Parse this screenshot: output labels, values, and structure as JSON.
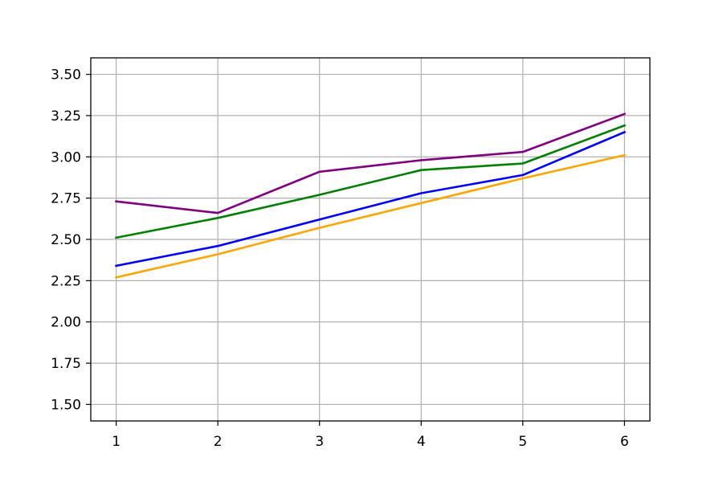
{
  "chart_data": {
    "type": "line",
    "title": "",
    "xlabel": "",
    "ylabel": "",
    "x": [
      1,
      2,
      3,
      4,
      5,
      6
    ],
    "xlim": [
      0.75,
      6.25
    ],
    "ylim": [
      1.4,
      3.6
    ],
    "xticks": [
      1,
      2,
      3,
      4,
      5,
      6
    ],
    "xtick_labels": [
      "1",
      "2",
      "3",
      "4",
      "5",
      "6"
    ],
    "yticks": [
      1.5,
      1.75,
      2.0,
      2.25,
      2.5,
      2.75,
      3.0,
      3.25,
      3.5
    ],
    "ytick_labels": [
      "1.50",
      "1.75",
      "2.00",
      "2.25",
      "2.50",
      "2.75",
      "3.00",
      "3.25",
      "3.50"
    ],
    "grid": true,
    "legend": false,
    "series": [
      {
        "color": "#0000ff",
        "values": [
          2.34,
          2.46,
          2.62,
          2.78,
          2.89,
          3.15
        ]
      },
      {
        "color": "#ffa500",
        "values": [
          2.27,
          2.41,
          2.57,
          2.72,
          2.87,
          3.01
        ]
      },
      {
        "color": "#008000",
        "values": [
          2.51,
          2.63,
          2.77,
          2.92,
          2.96,
          3.19
        ]
      },
      {
        "color": "#800080",
        "values": [
          2.73,
          2.66,
          2.91,
          2.98,
          3.03,
          3.26
        ]
      }
    ]
  }
}
